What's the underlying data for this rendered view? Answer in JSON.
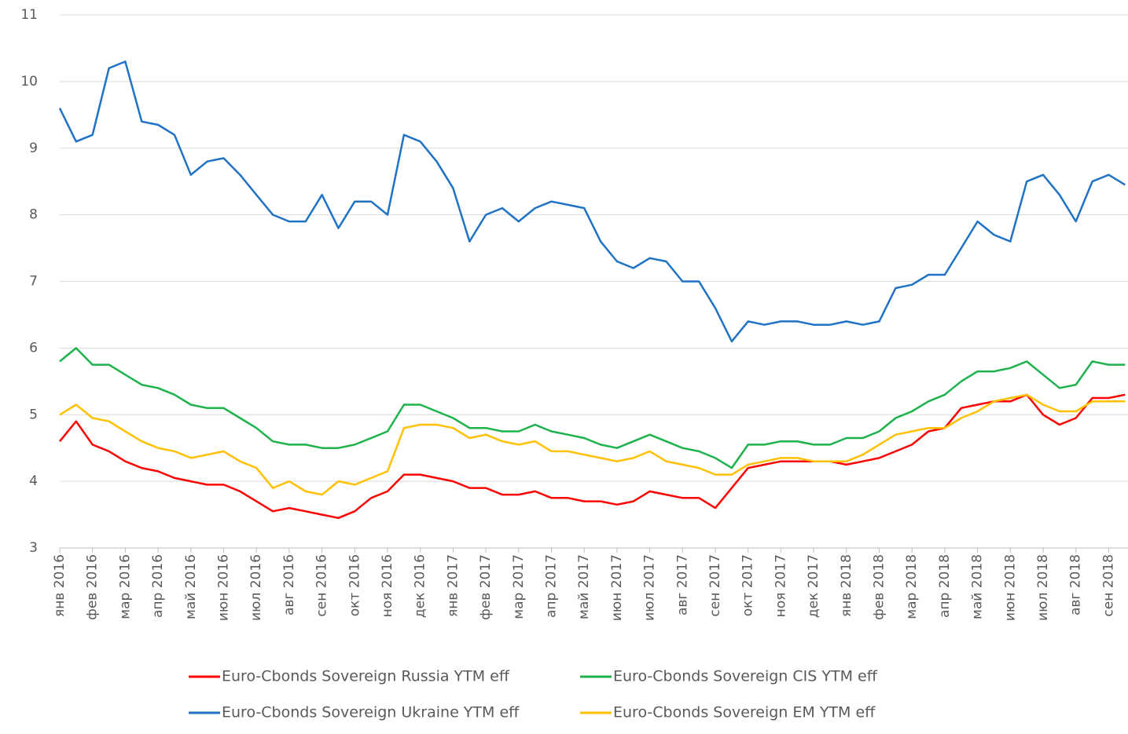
{
  "chart_data": {
    "type": "line",
    "categories": [
      "янв 2016",
      null,
      "фев 2016",
      null,
      "мар 2016",
      null,
      "апр 2016",
      null,
      "май 2016",
      null,
      "июн 2016",
      null,
      "июл 2016",
      null,
      "авг 2016",
      null,
      "сен 2016",
      null,
      "окт 2016",
      null,
      "ноя 2016",
      null,
      "дек 2016",
      null,
      "янв 2017",
      null,
      "фев 2017",
      null,
      "мар 2017",
      null,
      "апр 2017",
      null,
      "май 2017",
      null,
      "июн 2017",
      null,
      "июл 2017",
      null,
      "авг 2017",
      null,
      "сен 2017",
      null,
      "окт 2017",
      null,
      "ноя 2017",
      null,
      "дек 2017",
      null,
      "янв 2018",
      null,
      "фев 2018",
      null,
      "мар 2018",
      null,
      "апр 2018",
      null,
      "май 2018",
      null,
      "июн 2018",
      null,
      "июл 2018",
      null,
      "авг 2018",
      null,
      "сен 2018",
      null
    ],
    "series": [
      {
        "name": "Euro-Cbonds Sovereign Russia YTM eff",
        "color": "#ff0000",
        "values": [
          4.6,
          4.9,
          4.55,
          4.45,
          4.3,
          4.2,
          4.15,
          4.05,
          4.0,
          3.95,
          3.95,
          3.85,
          3.7,
          3.55,
          3.6,
          3.55,
          3.5,
          3.45,
          3.55,
          3.75,
          3.85,
          4.1,
          4.1,
          4.05,
          4.0,
          3.9,
          3.9,
          3.8,
          3.8,
          3.85,
          3.75,
          3.75,
          3.7,
          3.7,
          3.65,
          3.7,
          3.85,
          3.8,
          3.75,
          3.75,
          3.6,
          3.9,
          4.2,
          4.25,
          4.3,
          4.3,
          4.3,
          4.3,
          4.25,
          4.3,
          4.35,
          4.45,
          4.55,
          4.75,
          4.8,
          5.1,
          5.15,
          5.2,
          5.2,
          5.3,
          5.0,
          4.85,
          4.95,
          5.25,
          5.25,
          5.3
        ]
      },
      {
        "name": "Euro-Cbonds Sovereign CIS YTM eff",
        "color": "#1db24b",
        "values": [
          5.8,
          6.0,
          5.75,
          5.75,
          5.6,
          5.45,
          5.4,
          5.3,
          5.15,
          5.1,
          5.1,
          4.95,
          4.8,
          4.6,
          4.55,
          4.55,
          4.5,
          4.5,
          4.55,
          4.65,
          4.75,
          5.15,
          5.15,
          5.05,
          4.95,
          4.8,
          4.8,
          4.75,
          4.75,
          4.85,
          4.75,
          4.7,
          4.65,
          4.55,
          4.5,
          4.6,
          4.7,
          4.6,
          4.5,
          4.45,
          4.35,
          4.2,
          4.55,
          4.55,
          4.6,
          4.6,
          4.55,
          4.55,
          4.65,
          4.65,
          4.75,
          4.95,
          5.05,
          5.2,
          5.3,
          5.5,
          5.65,
          5.65,
          5.7,
          5.8,
          5.6,
          5.4,
          5.45,
          5.8,
          5.75,
          5.75
        ]
      },
      {
        "name": "Euro-Cbonds Sovereign Ukraine YTM eff",
        "color": "#1f72c4",
        "values": [
          9.6,
          9.1,
          9.2,
          10.2,
          10.3,
          9.4,
          9.35,
          9.2,
          8.6,
          8.8,
          8.85,
          8.6,
          8.3,
          8.0,
          7.9,
          7.9,
          8.3,
          7.8,
          8.2,
          8.2,
          8.0,
          9.2,
          9.1,
          8.8,
          8.4,
          7.6,
          8.0,
          8.1,
          7.9,
          8.1,
          8.2,
          8.15,
          8.1,
          7.6,
          7.3,
          7.2,
          7.35,
          7.3,
          7.0,
          7.0,
          6.6,
          6.1,
          6.4,
          6.35,
          6.4,
          6.4,
          6.35,
          6.35,
          6.4,
          6.35,
          6.4,
          6.9,
          6.95,
          7.1,
          7.1,
          7.5,
          7.9,
          7.7,
          7.6,
          8.5,
          8.6,
          8.3,
          7.9,
          8.5,
          8.6,
          8.45
        ]
      },
      {
        "name": "Euro-Cbonds Sovereign EM YTM eff",
        "color": "#ffc000",
        "values": [
          5.0,
          5.15,
          4.95,
          4.9,
          4.75,
          4.6,
          4.5,
          4.45,
          4.35,
          4.4,
          4.45,
          4.3,
          4.2,
          3.9,
          4.0,
          3.85,
          3.8,
          4.0,
          3.95,
          4.05,
          4.15,
          4.8,
          4.85,
          4.85,
          4.8,
          4.65,
          4.7,
          4.6,
          4.55,
          4.6,
          4.45,
          4.45,
          4.4,
          4.35,
          4.3,
          4.35,
          4.45,
          4.3,
          4.25,
          4.2,
          4.1,
          4.1,
          4.25,
          4.3,
          4.35,
          4.35,
          4.3,
          4.3,
          4.3,
          4.4,
          4.55,
          4.7,
          4.75,
          4.8,
          4.8,
          4.95,
          5.05,
          5.2,
          5.25,
          5.3,
          5.15,
          5.05,
          5.05,
          5.2,
          5.2,
          5.2
        ]
      }
    ],
    "ylim": [
      3,
      11
    ],
    "yticks": [
      3,
      4,
      5,
      6,
      7,
      8,
      9,
      10,
      11
    ],
    "grid": true,
    "legend": "bottom"
  }
}
